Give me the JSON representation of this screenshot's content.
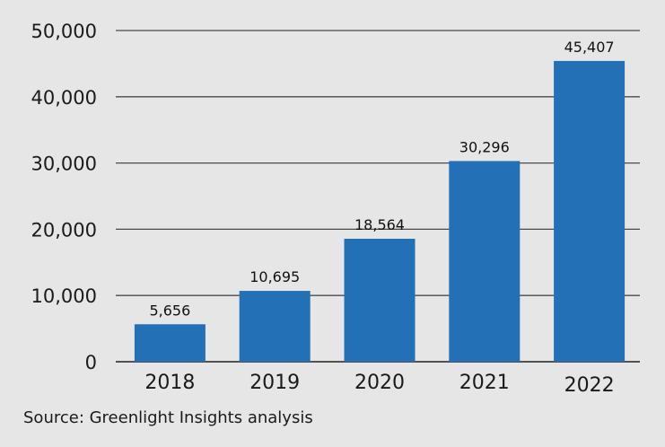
{
  "chart_data": {
    "type": "bar",
    "title": "",
    "xlabel": "",
    "ylabel": "",
    "categories": [
      "2018",
      "2019",
      "2020",
      "2021",
      "2022"
    ],
    "values": [
      5656,
      10695,
      18564,
      30296,
      45407
    ],
    "data_labels": [
      "5,656",
      "10,695",
      "18,564",
      "30,296",
      "45,407"
    ],
    "ylim": [
      0,
      50000
    ],
    "yticks": [
      0,
      10000,
      20000,
      30000,
      40000,
      50000
    ],
    "ytick_labels": [
      "0",
      "10,000",
      "20,000",
      "30,000",
      "40,000",
      "50,000"
    ],
    "grid": true,
    "legend": null,
    "bar_color": "#2370b7"
  },
  "source": "Source: Greenlight Insights analysis"
}
